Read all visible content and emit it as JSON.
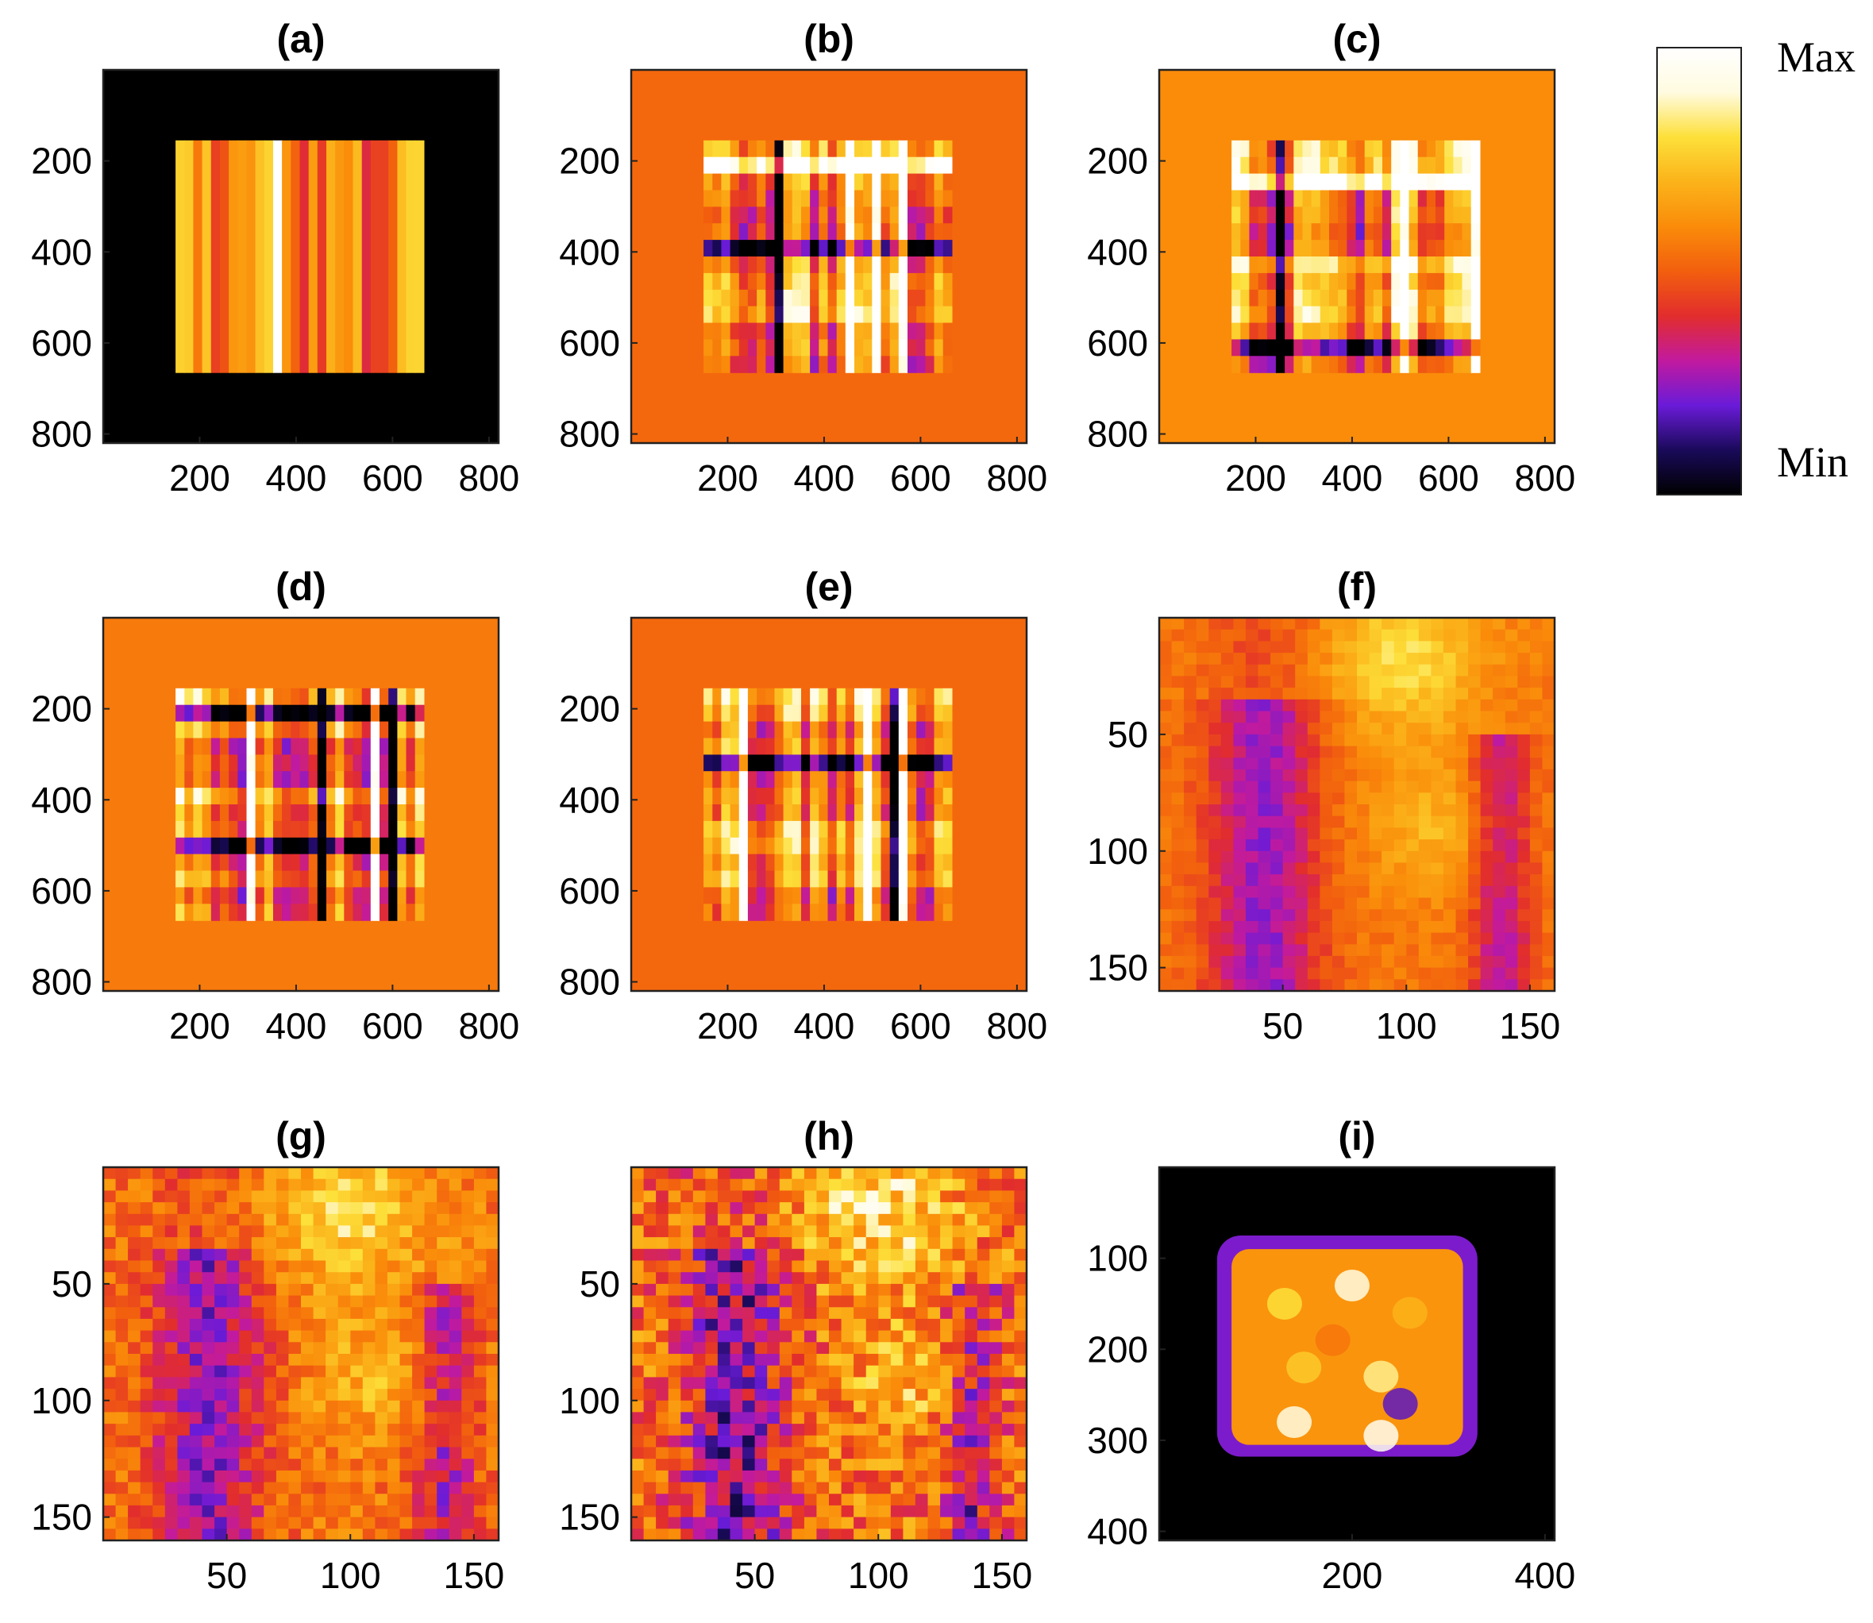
{
  "colormap": [
    "#000000",
    "#1a0a5a",
    "#6a1bd8",
    "#c21a9e",
    "#e22d2d",
    "#f25f0e",
    "#fa8c0a",
    "#fbb31a",
    "#fde03a",
    "#fffbe0",
    "#ffffff"
  ],
  "colorbar": {
    "max_label": "Max",
    "min_label": "Min"
  },
  "chart_data": [
    {
      "type": "heatmap",
      "title": "(a)",
      "xticks": [
        "200",
        "400",
        "600",
        "800"
      ],
      "yticks": [
        "200",
        "400",
        "600",
        "800"
      ],
      "xlim": [
        0,
        820
      ],
      "ylim": [
        0,
        820
      ],
      "background": 0.0,
      "pattern": "stripes",
      "inner": [
        150,
        155,
        665,
        665
      ]
    },
    {
      "type": "heatmap",
      "title": "(b)",
      "xticks": [
        "200",
        "400",
        "600",
        "800"
      ],
      "yticks": [
        "200",
        "400",
        "600",
        "800"
      ],
      "xlim": [
        0,
        820
      ],
      "ylim": [
        0,
        820
      ],
      "background": 0.52,
      "pattern": "grid",
      "inner": [
        150,
        155,
        665,
        665
      ]
    },
    {
      "type": "heatmap",
      "title": "(c)",
      "xticks": [
        "200",
        "400",
        "600",
        "800"
      ],
      "yticks": [
        "200",
        "400",
        "600",
        "800"
      ],
      "xlim": [
        0,
        820
      ],
      "ylim": [
        0,
        820
      ],
      "background": 0.6,
      "pattern": "grid",
      "inner": [
        150,
        155,
        665,
        665
      ]
    },
    {
      "type": "heatmap",
      "title": "(d)",
      "xticks": [
        "200",
        "400",
        "600",
        "800"
      ],
      "yticks": [
        "200",
        "400",
        "600",
        "800"
      ],
      "xlim": [
        0,
        820
      ],
      "ylim": [
        0,
        820
      ],
      "background": 0.56,
      "pattern": "grid",
      "inner": [
        150,
        155,
        665,
        665
      ]
    },
    {
      "type": "heatmap",
      "title": "(e)",
      "xticks": [
        "200",
        "400",
        "600",
        "800"
      ],
      "yticks": [
        "200",
        "400",
        "600",
        "800"
      ],
      "xlim": [
        0,
        820
      ],
      "ylim": [
        0,
        820
      ],
      "background": 0.52,
      "pattern": "grid",
      "inner": [
        150,
        155,
        665,
        665
      ]
    },
    {
      "type": "heatmap",
      "title": "(f)",
      "xticks": [
        "50",
        "100",
        "150"
      ],
      "yticks": [
        "50",
        "100",
        "150"
      ],
      "xlim": [
        0,
        160
      ],
      "ylim": [
        0,
        160
      ],
      "background": null,
      "pattern": "image-blurry"
    },
    {
      "type": "heatmap",
      "title": "(g)",
      "xticks": [
        "50",
        "100",
        "150"
      ],
      "yticks": [
        "50",
        "100",
        "150"
      ],
      "xlim": [
        0,
        160
      ],
      "ylim": [
        0,
        160
      ],
      "background": null,
      "pattern": "image-medium"
    },
    {
      "type": "heatmap",
      "title": "(h)",
      "xticks": [
        "50",
        "100",
        "150"
      ],
      "yticks": [
        "50",
        "100",
        "150"
      ],
      "xlim": [
        0,
        160
      ],
      "ylim": [
        0,
        160
      ],
      "background": null,
      "pattern": "image-sharp"
    },
    {
      "type": "heatmap",
      "title": "(i)",
      "xticks": [
        "200",
        "400"
      ],
      "yticks": [
        "100",
        "200",
        "300",
        "400"
      ],
      "xlim": [
        0,
        410
      ],
      "ylim": [
        0,
        410
      ],
      "background": 0.0,
      "pattern": "blob"
    }
  ]
}
